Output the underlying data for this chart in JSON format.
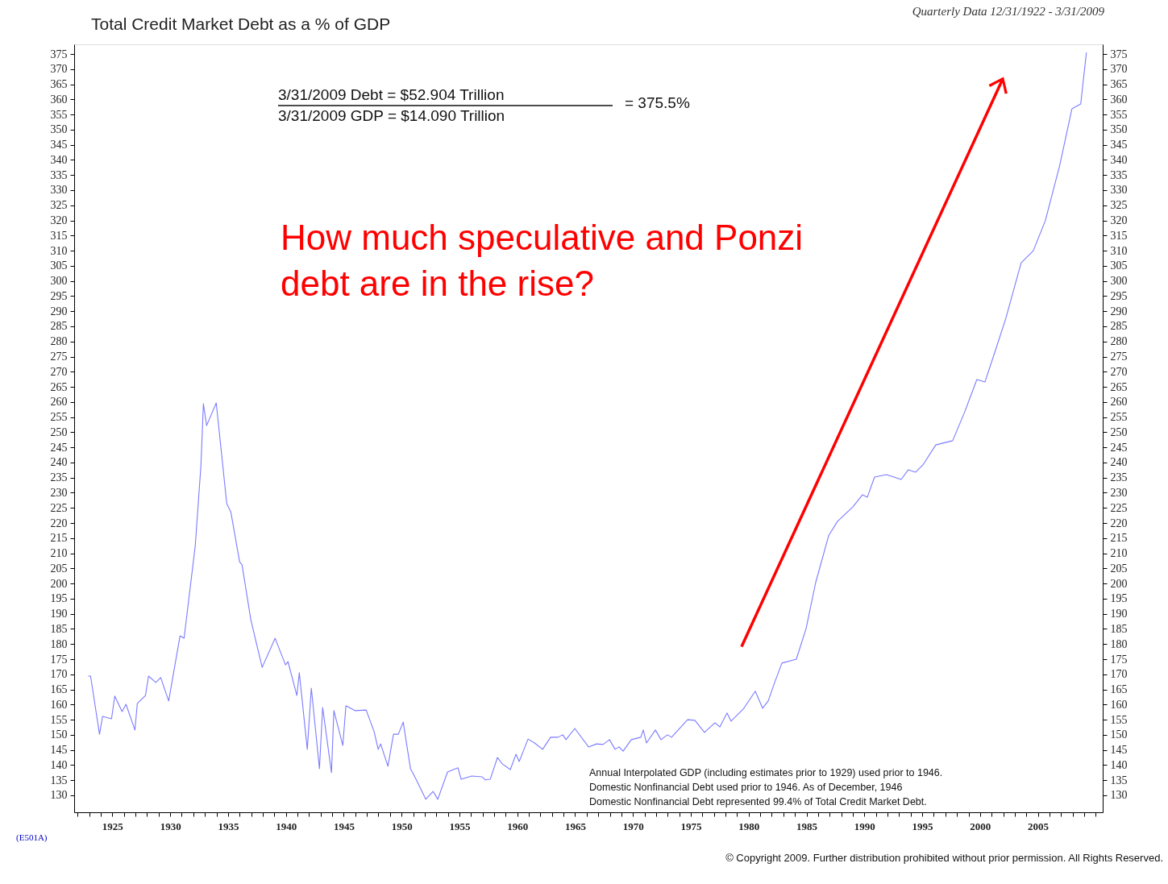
{
  "chart_data": {
    "type": "line",
    "title": "Total Credit Market Debt as a % of GDP",
    "subtitle": "Quarterly Data 12/31/1922 - 3/31/2009",
    "x": [
      1922.91,
      1923.12,
      1923.89,
      1924.16,
      1924.93,
      1925.21,
      1925.84,
      1926.18,
      1926.95,
      1927.16,
      1927.86,
      1928.13,
      1928.76,
      1929.18,
      1929.87,
      1930.85,
      1931.2,
      1932.17,
      1932.66,
      1932.87,
      1933.15,
      1933.98,
      1934.89,
      1935.24,
      1936.0,
      1936.21,
      1936.98,
      1937.95,
      1939.07,
      1939.97,
      1940.18,
      1940.95,
      1941.16,
      1941.85,
      1942.2,
      1942.9,
      1943.18,
      1943.94,
      1944.15,
      1944.92,
      1945.19,
      1945.96,
      1946.94,
      1947.63,
      1947.98,
      1948.19,
      1948.82,
      1949.3,
      1949.72,
      1950.14,
      1950.77,
      1951.11,
      1952.09,
      1952.72,
      1953.13,
      1953.97,
      1954.87,
      1955.15,
      1956.06,
      1956.96,
      1957.24,
      1957.66,
      1958.29,
      1958.7,
      1959.4,
      1959.89,
      1960.17,
      1960.93,
      1961.49,
      1962.19,
      1962.88,
      1963.51,
      1963.93,
      1964.21,
      1964.97,
      1966.16,
      1966.85,
      1967.41,
      1967.97,
      1968.45,
      1968.8,
      1969.15,
      1969.85,
      1970.68,
      1970.89,
      1971.17,
      1971.94,
      1972.42,
      1972.98,
      1973.33,
      1974.72,
      1975.35,
      1976.18,
      1977.09,
      1977.51,
      1978.13,
      1978.48,
      1979.53,
      1980.57,
      1981.2,
      1981.69,
      1982.17,
      1982.87,
      1984.12,
      1984.96,
      1985.79,
      1986.91,
      1987.67,
      1989.0,
      1989.83,
      1990.25,
      1990.88,
      1991.92,
      1993.18,
      1993.8,
      1994.43,
      1995.06,
      1996.17,
      1997.63,
      1998.68,
      1999.72,
      2000.42,
      2001.39,
      2002.23,
      2003.55,
      2004.6,
      2005.64,
      2006.89,
      2007.94,
      2008.7,
      2009.19
    ],
    "series": [
      {
        "color": "#7b7bff",
        "values": [
          169.4,
          169.4,
          150.2,
          156.1,
          155.3,
          162.8,
          157.7,
          160.1,
          151.6,
          160.4,
          163.0,
          169.4,
          167.3,
          168.9,
          161.2,
          182.7,
          181.9,
          212.6,
          239.2,
          259.4,
          252.2,
          259.7,
          226.4,
          223.7,
          207.2,
          206.2,
          187.8,
          172.3,
          181.9,
          173.1,
          174.2,
          163.0,
          170.5,
          145.2,
          165.4,
          138.8,
          159.0,
          137.5,
          158.0,
          146.5,
          159.6,
          158.0,
          158.2,
          151.0,
          145.2,
          147.0,
          139.6,
          150.2,
          150.2,
          154.2,
          138.8,
          136.4,
          128.7,
          131.3,
          128.7,
          137.7,
          139.1,
          135.3,
          136.4,
          136.1,
          135.1,
          135.3,
          142.5,
          140.4,
          138.5,
          143.6,
          141.2,
          148.6,
          147.3,
          145.2,
          149.2,
          149.2,
          150.0,
          148.4,
          152.1,
          146.0,
          147.0,
          146.8,
          148.4,
          145.2,
          146.0,
          144.6,
          148.4,
          149.2,
          151.6,
          147.3,
          151.6,
          148.4,
          150.0,
          149.2,
          155.0,
          154.8,
          150.8,
          154.0,
          152.6,
          157.2,
          154.5,
          158.5,
          164.4,
          158.8,
          161.2,
          166.5,
          173.7,
          175.0,
          185.1,
          200.3,
          215.8,
          220.5,
          225.3,
          229.3,
          228.5,
          235.2,
          236.0,
          234.4,
          237.6,
          236.8,
          239.2,
          245.8,
          247.2,
          256.8,
          267.4,
          266.6,
          277.8,
          287.7,
          306.0,
          310.0,
          319.9,
          338.3,
          356.9,
          358.5,
          375.5
        ]
      }
    ],
    "xlim": [
      1921.7,
      2010.6
    ],
    "xticks": [
      {
        "value": 1922,
        "label": null
      },
      {
        "value": 1923,
        "label": null
      },
      {
        "value": 1924,
        "label": null
      },
      1925,
      {
        "value": 1926,
        "label": null
      },
      {
        "value": 1927,
        "label": null
      },
      {
        "value": 1928,
        "label": null
      },
      {
        "value": 1929,
        "label": null
      },
      1930,
      {
        "value": 1931,
        "label": null
      },
      {
        "value": 1932,
        "label": null
      },
      {
        "value": 1933,
        "label": null
      },
      {
        "value": 1934,
        "label": null
      },
      1935,
      {
        "value": 1936,
        "label": null
      },
      {
        "value": 1937,
        "label": null
      },
      {
        "value": 1938,
        "label": null
      },
      {
        "value": 1939,
        "label": null
      },
      1940,
      {
        "value": 1941,
        "label": null
      },
      {
        "value": 1942,
        "label": null
      },
      {
        "value": 1943,
        "label": null
      },
      {
        "value": 1944,
        "label": null
      },
      1945,
      {
        "value": 1946,
        "label": null
      },
      {
        "value": 1947,
        "label": null
      },
      {
        "value": 1948,
        "label": null
      },
      {
        "value": 1949,
        "label": null
      },
      1950,
      {
        "value": 1951,
        "label": null
      },
      {
        "value": 1952,
        "label": null
      },
      {
        "value": 1953,
        "label": null
      },
      {
        "value": 1954,
        "label": null
      },
      1955,
      {
        "value": 1956,
        "label": null
      },
      {
        "value": 1957,
        "label": null
      },
      {
        "value": 1958,
        "label": null
      },
      {
        "value": 1959,
        "label": null
      },
      1960,
      {
        "value": 1961,
        "label": null
      },
      {
        "value": 1962,
        "label": null
      },
      {
        "value": 1963,
        "label": null
      },
      {
        "value": 1964,
        "label": null
      },
      1965,
      {
        "value": 1966,
        "label": null
      },
      {
        "value": 1967,
        "label": null
      },
      {
        "value": 1968,
        "label": null
      },
      {
        "value": 1969,
        "label": null
      },
      1970,
      {
        "value": 1971,
        "label": null
      },
      {
        "value": 1972,
        "label": null
      },
      {
        "value": 1973,
        "label": null
      },
      {
        "value": 1974,
        "label": null
      },
      1975,
      {
        "value": 1976,
        "label": null
      },
      {
        "value": 1977,
        "label": null
      },
      {
        "value": 1978,
        "label": null
      },
      {
        "value": 1979,
        "label": null
      },
      1980,
      {
        "value": 1981,
        "label": null
      },
      {
        "value": 1982,
        "label": null
      },
      {
        "value": 1983,
        "label": null
      },
      {
        "value": 1984,
        "label": null
      },
      1985,
      {
        "value": 1986,
        "label": null
      },
      {
        "value": 1987,
        "label": null
      },
      {
        "value": 1988,
        "label": null
      },
      {
        "value": 1989,
        "label": null
      },
      1990,
      {
        "value": 1991,
        "label": null
      },
      {
        "value": 1992,
        "label": null
      },
      {
        "value": 1993,
        "label": null
      },
      {
        "value": 1994,
        "label": null
      },
      1995,
      {
        "value": 1996,
        "label": null
      },
      {
        "value": 1997,
        "label": null
      },
      {
        "value": 1998,
        "label": null
      },
      {
        "value": 1999,
        "label": null
      },
      2000,
      {
        "value": 2001,
        "label": null
      },
      {
        "value": 2002,
        "label": null
      },
      {
        "value": 2003,
        "label": null
      },
      {
        "value": 2004,
        "label": null
      },
      2005,
      {
        "value": 2006,
        "label": null
      },
      {
        "value": 2007,
        "label": null
      },
      {
        "value": 2008,
        "label": null
      },
      {
        "value": 2009,
        "label": null
      },
      {
        "value": 2010,
        "label": null
      }
    ],
    "ylim": [
      124.4,
      378.2
    ],
    "yticks": [
      130,
      135,
      140,
      145,
      150,
      155,
      160,
      165,
      170,
      175,
      180,
      185,
      190,
      195,
      200,
      205,
      210,
      215,
      220,
      225,
      230,
      235,
      240,
      245,
      250,
      255,
      260,
      265,
      270,
      275,
      280,
      285,
      290,
      295,
      300,
      305,
      310,
      315,
      320,
      325,
      330,
      335,
      340,
      345,
      350,
      355,
      360,
      365,
      370,
      375
    ],
    "y2lim": [
      124.4,
      378.2
    ],
    "y2ticks": [
      130,
      135,
      140,
      145,
      150,
      155,
      160,
      165,
      170,
      175,
      180,
      185,
      190,
      195,
      200,
      205,
      210,
      215,
      220,
      225,
      230,
      235,
      240,
      245,
      250,
      255,
      260,
      265,
      270,
      275,
      280,
      285,
      290,
      295,
      300,
      305,
      310,
      315,
      320,
      325,
      330,
      335,
      340,
      345,
      350,
      355,
      360,
      365,
      370,
      375
    ],
    "grid": false,
    "legend": false,
    "marker": "none",
    "line_style": "solid",
    "annotations": [
      "3/31/2009  Debt      =  $52.904 Trillion",
      "3/31/2009  GDP       =  $14.090 Trillion",
      "=  375.5%",
      "How much speculative and Ponzi\ndebt are in the rise?",
      "Annual Interpolated GDP (including estimates prior to 1929) used prior to 1946.\nDomestic Nonfinancial Debt used prior to 1946. As of December, 1946\nDomestic Nonfinancial Debt represented 99.4% of Total Credit Market Debt.",
      "(E501A)",
      "© Copyright 2009. Further distribution prohibited without prior permission.  All Rights Reserved."
    ]
  }
}
